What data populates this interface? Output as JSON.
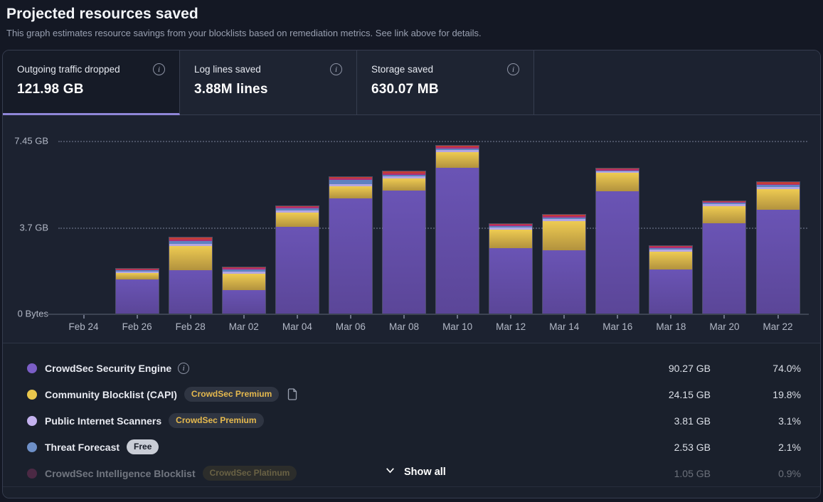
{
  "header": {
    "title": "Projected resources saved",
    "subtitle": "This graph estimates resource savings from your blocklists based on remediation metrics. See link above for details."
  },
  "tabs": [
    {
      "id": "outgoing-traffic-dropped",
      "label": "Outgoing traffic dropped",
      "value": "121.98 GB",
      "active": true
    },
    {
      "id": "log-lines-saved",
      "label": "Log lines saved",
      "value": "3.88M lines",
      "active": false
    },
    {
      "id": "storage-saved",
      "label": "Storage saved",
      "value": "630.07 MB",
      "active": false
    }
  ],
  "chart_data": {
    "type": "bar",
    "stacked": true,
    "unit": "GB",
    "ylim": [
      0,
      7.45
    ],
    "y_ticks": [
      {
        "label": "7.45 GB",
        "value": 7.45
      },
      {
        "label": "3.7 GB",
        "value": 3.7
      },
      {
        "label": "0 Bytes",
        "value": 0
      }
    ],
    "grid": "dotted-horizontal",
    "x": [
      "Feb 24",
      "Feb 26",
      "Feb 28",
      "Mar 02",
      "Mar 04",
      "Mar 06",
      "Mar 08",
      "Mar 10",
      "Mar 12",
      "Mar 14",
      "Mar 16",
      "Mar 18",
      "Mar 20",
      "Mar 22"
    ],
    "series": [
      {
        "name": "CrowdSec Security Engine",
        "color_top": "#6a54b5",
        "color_bottom": "#5b4698",
        "values": [
          0,
          1.47,
          1.87,
          1.02,
          3.73,
          4.96,
          5.29,
          6.28,
          2.83,
          2.73,
          5.26,
          1.89,
          3.9,
          4.48
        ]
      },
      {
        "name": "Community Blocklist (CAPI)",
        "color_top": "#eecb52",
        "color_bottom": "#b2923e",
        "values": [
          0,
          0.28,
          1.04,
          0.7,
          0.61,
          0.51,
          0.53,
          0.68,
          0.8,
          1.26,
          0.79,
          0.77,
          0.75,
          0.89
        ]
      },
      {
        "name": "Public Internet Scanners",
        "color_top": "#b3a6e2",
        "color_bottom": "#b3a6e2",
        "values": [
          0,
          0.06,
          0.1,
          0.08,
          0.08,
          0.09,
          0.08,
          0.08,
          0.08,
          0.08,
          0.06,
          0.08,
          0.1,
          0.08
        ]
      },
      {
        "name": "Threat Forecast",
        "color_top": "#5f81c1",
        "color_bottom": "#5f81c1",
        "values": [
          0,
          0.05,
          0.12,
          0.08,
          0.09,
          0.18,
          0.07,
          0.06,
          0.05,
          0.05,
          0.04,
          0.07,
          0.06,
          0.08
        ]
      },
      {
        "name": "CrowdSec Intelligence Blocklist",
        "color_top": "#ae2e75",
        "color_bottom": "#ae2e75",
        "values": [
          0,
          0.04,
          0.05,
          0.06,
          0.07,
          0.07,
          0.06,
          0.05,
          0.05,
          0.06,
          0.06,
          0.05,
          0.04,
          0.04
        ]
      },
      {
        "name": "unlabeled",
        "color_top": "#c23c38",
        "color_bottom": "#c23c38",
        "values": [
          0,
          0.02,
          0.08,
          0.04,
          0.04,
          0.06,
          0.08,
          0.06,
          0.03,
          0.06,
          0.04,
          0.03,
          0.04,
          0.09
        ]
      }
    ]
  },
  "legend": {
    "rows": [
      {
        "id": "crowdsec-security-engine",
        "name": "CrowdSec Security Engine",
        "dot_color": "#7b5ec6",
        "info_icon": true,
        "badge": null,
        "badge_style": null,
        "doc_icon": false,
        "value": "90.27 GB",
        "percent": "74.0%",
        "dimmed": false
      },
      {
        "id": "community-blocklist-capi",
        "name": "Community Blocklist (CAPI)",
        "dot_color": "#e9c74d",
        "info_icon": false,
        "badge": "CrowdSec Premium",
        "badge_style": "premium",
        "doc_icon": true,
        "value": "24.15 GB",
        "percent": "19.8%",
        "dimmed": false
      },
      {
        "id": "public-internet-scanners",
        "name": "Public Internet Scanners",
        "dot_color": "#c4b2ef",
        "info_icon": false,
        "badge": "CrowdSec Premium",
        "badge_style": "premium",
        "doc_icon": false,
        "value": "3.81 GB",
        "percent": "3.1%",
        "dimmed": false
      },
      {
        "id": "threat-forecast",
        "name": "Threat Forecast",
        "dot_color": "#6e90c8",
        "info_icon": false,
        "badge": "Free",
        "badge_style": "free",
        "doc_icon": false,
        "value": "2.53 GB",
        "percent": "2.1%",
        "dimmed": false
      },
      {
        "id": "crowdsec-intelligence-blocklist",
        "name": "CrowdSec Intelligence Blocklist",
        "dot_color": "#8f3666",
        "info_icon": false,
        "badge": "CrowdSec Platinum",
        "badge_style": "platinum",
        "doc_icon": false,
        "value": "1.05 GB",
        "percent": "0.9%",
        "dimmed": true
      }
    ],
    "show_all_label": "Show all"
  },
  "colors": {
    "page_bg": "#141824",
    "panel_border": "#363d4f",
    "active_tab_underline": "#8f86d8",
    "chart_bg": "#1c2230",
    "legend_bg": "#1a202c"
  }
}
